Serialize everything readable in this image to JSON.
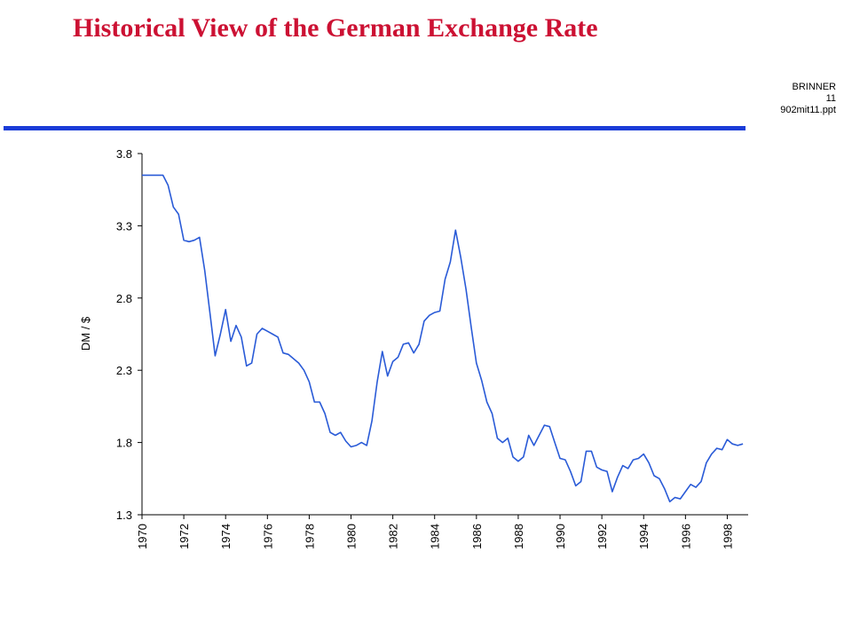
{
  "slide": {
    "title": "Historical View of the German Exchange Rate",
    "info_lines": [
      "BRINNER",
      "11",
      "902mit11.ppt"
    ]
  },
  "colors": {
    "title": "#cc1133",
    "divider": "#1a3cd8",
    "line": "#2a5bd7"
  },
  "chart_data": {
    "type": "line",
    "title": "",
    "xlabel": "",
    "ylabel": "DM / $",
    "ylim": [
      1.3,
      3.8
    ],
    "xlim": [
      1970,
      1999
    ],
    "yticks": [
      "1.3",
      "1.8",
      "2.3",
      "2.8",
      "3.3",
      "3.8"
    ],
    "xticks": [
      "1970",
      "1972",
      "1974",
      "1976",
      "1978",
      "1980",
      "1982",
      "1984",
      "1986",
      "1988",
      "1990",
      "1992",
      "1994",
      "1996",
      "1998"
    ],
    "grid": false,
    "legend": "none",
    "series": [
      {
        "x": [
          1970.0,
          1971.0,
          1971.25,
          1971.5,
          1971.75,
          1972.0,
          1972.25,
          1972.5,
          1972.75,
          1973.0,
          1973.25,
          1973.5,
          1973.75,
          1974.0,
          1974.25,
          1974.5,
          1974.75,
          1975.0,
          1975.25,
          1975.5,
          1975.75,
          1976.0,
          1976.25,
          1976.5,
          1976.75,
          1977.0,
          1977.25,
          1977.5,
          1977.75,
          1978.0,
          1978.25,
          1978.5,
          1978.75,
          1979.0,
          1979.25,
          1979.5,
          1979.75,
          1980.0,
          1980.25,
          1980.5,
          1980.75,
          1981.0,
          1981.25,
          1981.5,
          1981.75,
          1982.0,
          1982.25,
          1982.5,
          1982.75,
          1983.0,
          1983.25,
          1983.5,
          1983.75,
          1984.0,
          1984.25,
          1984.5,
          1984.75,
          1985.0,
          1985.25,
          1985.5,
          1985.75,
          1986.0,
          1986.25,
          1986.5,
          1986.75,
          1987.0,
          1987.25,
          1987.5,
          1987.75,
          1988.0,
          1988.25,
          1988.5,
          1988.75,
          1989.0,
          1989.25,
          1989.5,
          1989.75,
          1990.0,
          1990.25,
          1990.5,
          1990.75,
          1991.0,
          1991.25,
          1991.5,
          1991.75,
          1992.0,
          1992.25,
          1992.5,
          1992.75,
          1993.0,
          1993.25,
          1993.5,
          1993.75,
          1994.0,
          1994.25,
          1994.5,
          1994.75,
          1995.0,
          1995.25,
          1995.5,
          1995.75,
          1996.0,
          1996.25,
          1996.5,
          1996.75,
          1997.0,
          1997.25,
          1997.5,
          1997.75,
          1998.0,
          1998.25,
          1998.5,
          1998.75
        ],
        "values": [
          3.65,
          3.65,
          3.58,
          3.43,
          3.38,
          3.2,
          3.19,
          3.2,
          3.22,
          2.99,
          2.7,
          2.4,
          2.55,
          2.72,
          2.5,
          2.61,
          2.53,
          2.33,
          2.35,
          2.55,
          2.59,
          2.57,
          2.55,
          2.53,
          2.42,
          2.41,
          2.38,
          2.35,
          2.3,
          2.22,
          2.08,
          2.08,
          2.0,
          1.87,
          1.85,
          1.87,
          1.81,
          1.77,
          1.78,
          1.8,
          1.78,
          1.95,
          2.22,
          2.43,
          2.26,
          2.36,
          2.39,
          2.48,
          2.49,
          2.42,
          2.48,
          2.64,
          2.68,
          2.7,
          2.71,
          2.93,
          3.05,
          3.27,
          3.08,
          2.86,
          2.6,
          2.35,
          2.23,
          2.08,
          2.0,
          1.83,
          1.8,
          1.83,
          1.7,
          1.67,
          1.7,
          1.85,
          1.78,
          1.85,
          1.92,
          1.91,
          1.8,
          1.69,
          1.68,
          1.6,
          1.5,
          1.53,
          1.74,
          1.74,
          1.63,
          1.61,
          1.6,
          1.46,
          1.56,
          1.64,
          1.62,
          1.68,
          1.69,
          1.72,
          1.66,
          1.57,
          1.55,
          1.48,
          1.39,
          1.42,
          1.41,
          1.46,
          1.51,
          1.49,
          1.53,
          1.66,
          1.72,
          1.76,
          1.75,
          1.82,
          1.79,
          1.78,
          1.79
        ]
      }
    ]
  }
}
